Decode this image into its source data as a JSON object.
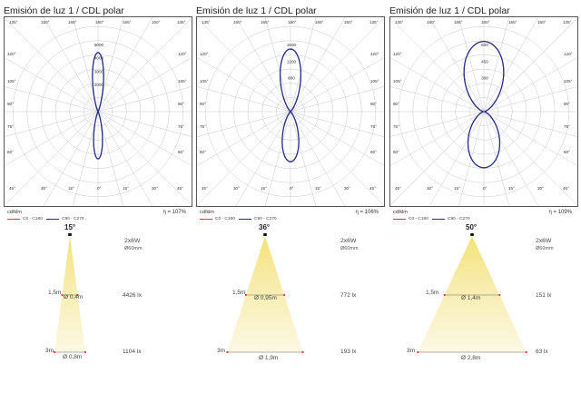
{
  "panels": [
    {
      "title": "Emisión de luz 1 / CDL polar",
      "unit": "cd/klm",
      "eta": "η = 107%",
      "rings": [
        1000,
        2000,
        3000,
        4000,
        5000
      ],
      "ring_labels": [
        "2000",
        "3000",
        "4000",
        "5000"
      ],
      "max_value": 5000,
      "c0_color": "#e83a2a",
      "c90_color": "#24308a",
      "legend": [
        "C0 - C180",
        "C90 - C270"
      ],
      "curve_peak": 4426,
      "curve_halfwidth_deg": 9
    },
    {
      "title": "Emisión de luz 1 / CDL polar",
      "unit": "cd/klm",
      "eta": "η = 106%",
      "rings": [
        400,
        800,
        1200,
        1600
      ],
      "ring_labels": [
        "800",
        "1200",
        "1600"
      ],
      "max_value": 1600,
      "c0_color": "#e83a2a",
      "c90_color": "#24308a",
      "legend": [
        "C0 - C180",
        "C90 - C270"
      ],
      "curve_peak": 1500,
      "curve_halfwidth_deg": 16
    },
    {
      "title": "Emisión de luz 1 / CDL polar",
      "unit": "cd/klm",
      "eta": "η = 109%",
      "rings": [
        150,
        300,
        450,
        600
      ],
      "ring_labels": [
        "300",
        "450",
        "600"
      ],
      "max_value": 600,
      "c0_color": "#e83a2a",
      "c90_color": "#24308a",
      "legend": [
        "C0 - C180",
        "C90 - C270"
      ],
      "curve_peak": 660,
      "curve_halfwidth_deg": 28
    }
  ],
  "angle_labels": {
    "top": [
      "135°",
      "150°",
      "165°",
      "180°",
      "165°",
      "150°",
      "135°"
    ],
    "bottom": [
      "45°",
      "30°",
      "15°",
      "0°",
      "15°",
      "30°",
      "45°"
    ],
    "sides": [
      "120°",
      "105°",
      "90°",
      "75°",
      "60°"
    ]
  },
  "beams": [
    {
      "angle": "15°",
      "power": "2x6W",
      "size": "Ø60mm",
      "d1_label": "1,5m",
      "d1_dia": "Ø 0,4m",
      "d1_lux": "4426 lx",
      "d2_label": "3m",
      "d2_dia": "Ø 0,8m",
      "d2_lux": "1104 lx",
      "half_angle_deg": 7.5
    },
    {
      "angle": "36°",
      "power": "2x6W",
      "size": "Ø60mm",
      "d1_label": "1,5m",
      "d1_dia": "Ø 0,95m",
      "d1_lux": "772 lx",
      "d2_label": "3m",
      "d2_dia": "Ø 1,9m",
      "d2_lux": "193 lx",
      "half_angle_deg": 18
    },
    {
      "angle": "50°",
      "power": "2x6W",
      "size": "Ø60mm",
      "d1_label": "1,5m",
      "d1_dia": "Ø 1,4m",
      "d1_lux": "151 lx",
      "d2_label": "3m",
      "d2_dia": "Ø 2,8m",
      "d2_lux": "63 lx",
      "half_angle_deg": 25
    }
  ],
  "chart_data": [
    {
      "type": "polar",
      "title": "Emisión de luz 1 / CDL polar",
      "series": [
        {
          "name": "C0 - C180"
        },
        {
          "name": "C90 - C270"
        }
      ],
      "rmax": 5000,
      "efficiency": "η = 107%"
    },
    {
      "type": "polar",
      "title": "Emisión de luz 1 / CDL polar",
      "series": [
        {
          "name": "C0 - C180"
        },
        {
          "name": "C90 - C270"
        }
      ],
      "rmax": 1600,
      "efficiency": "η = 106%"
    },
    {
      "type": "polar",
      "title": "Emisión de luz 1 / CDL polar",
      "series": [
        {
          "name": "C0 - C180"
        },
        {
          "name": "C90 - C270"
        }
      ],
      "rmax": 600,
      "efficiency": "η = 109%"
    }
  ]
}
